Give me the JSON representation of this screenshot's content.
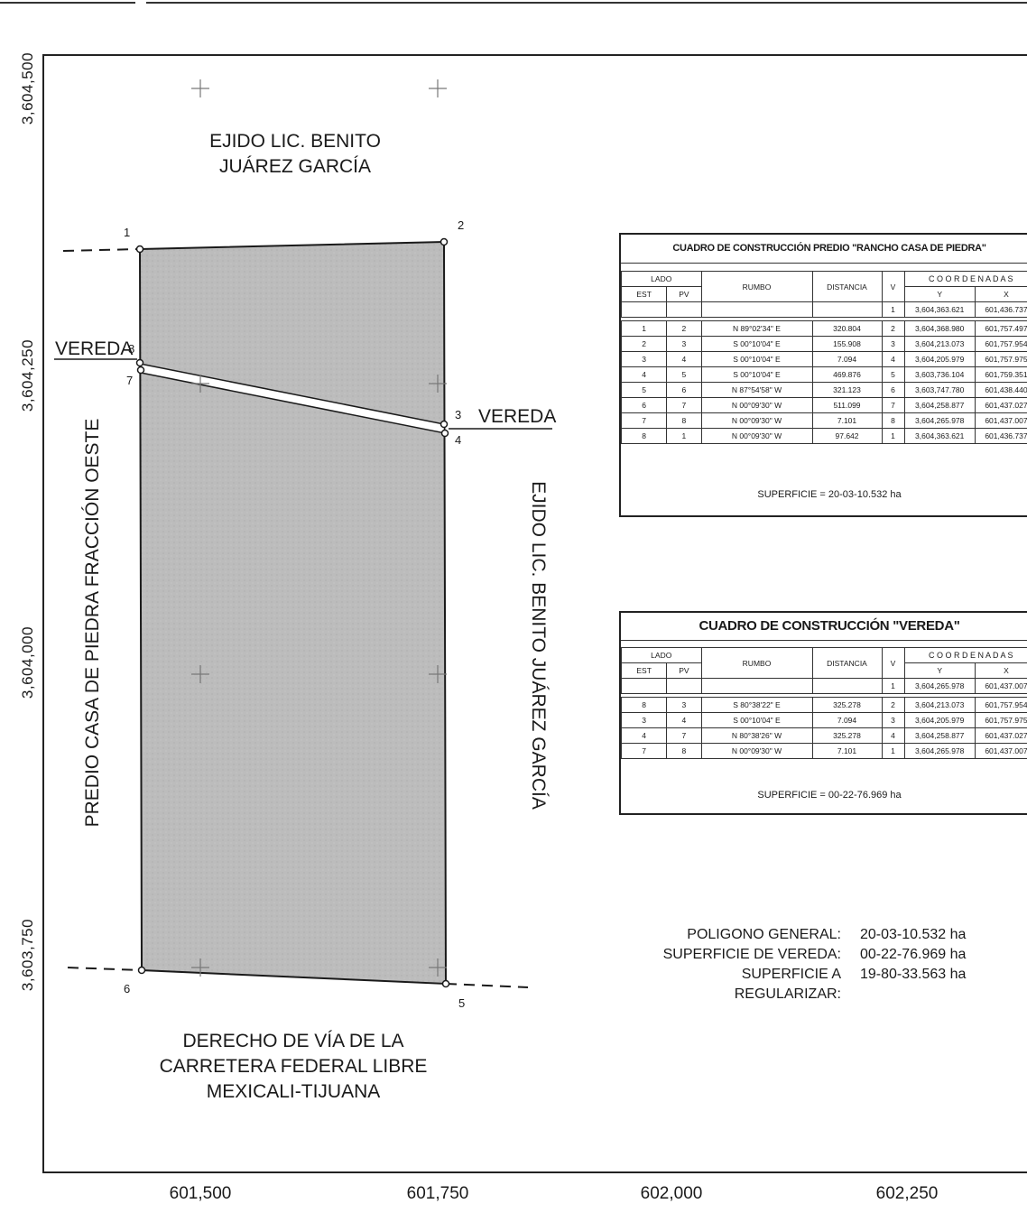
{
  "axes": {
    "y_ticks": [
      "3,604,500",
      "3,604,250",
      "3,604,000",
      "3,603,750"
    ],
    "x_ticks": [
      "601,500",
      "601,750",
      "602,000",
      "602,250"
    ]
  },
  "map": {
    "north_neighbor": [
      "EJIDO LIC. BENITO",
      "JUÁREZ GARCÍA"
    ],
    "west_neighbor": "PREDIO CASA DE PIEDRA FRACCIÓN OESTE",
    "east_neighbor": "EJIDO LIC. BENITO JUÁREZ GARCÍA",
    "south_neighbor": [
      "DERECHO DE VÍA DE LA",
      "CARRETERA FEDERAL LIBRE",
      "MEXICALI-TIJUANA"
    ],
    "vereda_label": "VEREDA",
    "points": [
      "1",
      "2",
      "3",
      "4",
      "5",
      "6",
      "7",
      "8"
    ],
    "colors": {
      "parcel_fill": "#bdbdbd",
      "vereda_fill": "#ffffff",
      "line": "#1a1a1a"
    }
  },
  "table1": {
    "title": "CUADRO DE CONSTRUCCIÓN PREDIO \"RANCHO CASA DE PIEDRA\"",
    "headers": {
      "lado": "LADO",
      "est": "EST",
      "pv": "PV",
      "rumbo": "RUMBO",
      "distancia": "DISTANCIA",
      "v": "V",
      "coordenadas": "C O O R D E N A D A S",
      "y": "Y",
      "x": "X"
    },
    "first_row": {
      "v": "1",
      "y": "3,604,363.621",
      "x": "601,436.737"
    },
    "rows": [
      {
        "est": "1",
        "pv": "2",
        "rumbo": "N 89°02'34\" E",
        "dist": "320.804",
        "v": "2",
        "y": "3,604,368.980",
        "x": "601,757.497"
      },
      {
        "est": "2",
        "pv": "3",
        "rumbo": "S 00°10'04\" E",
        "dist": "155.908",
        "v": "3",
        "y": "3,604,213.073",
        "x": "601,757.954"
      },
      {
        "est": "3",
        "pv": "4",
        "rumbo": "S 00°10'04\" E",
        "dist": "7.094",
        "v": "4",
        "y": "3,604,205.979",
        "x": "601,757.975"
      },
      {
        "est": "4",
        "pv": "5",
        "rumbo": "S 00°10'04\" E",
        "dist": "469.876",
        "v": "5",
        "y": "3,603,736.104",
        "x": "601,759.351"
      },
      {
        "est": "5",
        "pv": "6",
        "rumbo": "N 87°54'58\" W",
        "dist": "321.123",
        "v": "6",
        "y": "3,603,747.780",
        "x": "601,438.440"
      },
      {
        "est": "6",
        "pv": "7",
        "rumbo": "N 00°09'30\" W",
        "dist": "511.099",
        "v": "7",
        "y": "3,604,258.877",
        "x": "601,437.027"
      },
      {
        "est": "7",
        "pv": "8",
        "rumbo": "N 00°09'30\" W",
        "dist": "7.101",
        "v": "8",
        "y": "3,604,265.978",
        "x": "601,437.007"
      },
      {
        "est": "8",
        "pv": "1",
        "rumbo": "N 00°09'30\" W",
        "dist": "97.642",
        "v": "1",
        "y": "3,604,363.621",
        "x": "601,436.737"
      }
    ],
    "superficie": "SUPERFICIE = 20-03-10.532 ha"
  },
  "table2": {
    "title": "CUADRO DE CONSTRUCCIÓN \"VEREDA\"",
    "headers": {
      "lado": "LADO",
      "est": "EST",
      "pv": "PV",
      "rumbo": "RUMBO",
      "distancia": "DISTANCIA",
      "v": "V",
      "coordenadas": "C O O R D E N A D A S",
      "y": "Y",
      "x": "X"
    },
    "first_row": {
      "v": "1",
      "y": "3,604,265.978",
      "x": "601,437.007"
    },
    "rows": [
      {
        "est": "8",
        "pv": "3",
        "rumbo": "S 80°38'22\" E",
        "dist": "325.278",
        "v": "2",
        "y": "3,604,213.073",
        "x": "601,757.954"
      },
      {
        "est": "3",
        "pv": "4",
        "rumbo": "S 00°10'04\" E",
        "dist": "7.094",
        "v": "3",
        "y": "3,604,205.979",
        "x": "601,757.975"
      },
      {
        "est": "4",
        "pv": "7",
        "rumbo": "N 80°38'26\" W",
        "dist": "325.278",
        "v": "4",
        "y": "3,604,258.877",
        "x": "601,437.027"
      },
      {
        "est": "7",
        "pv": "8",
        "rumbo": "N 00°09'30\" W",
        "dist": "7.101",
        "v": "1",
        "y": "3,604,265.978",
        "x": "601,437.007"
      }
    ],
    "superficie": "SUPERFICIE = 00-22-76.969 ha"
  },
  "summary": {
    "items": [
      {
        "label": "POLIGONO GENERAL:",
        "value": "20-03-10.532 ha"
      },
      {
        "label": "SUPERFICIE DE VEREDA:",
        "value": "00-22-76.969 ha"
      },
      {
        "label": "SUPERFICIE A REGULARIZAR:",
        "value": "19-80-33.563 ha"
      }
    ]
  }
}
